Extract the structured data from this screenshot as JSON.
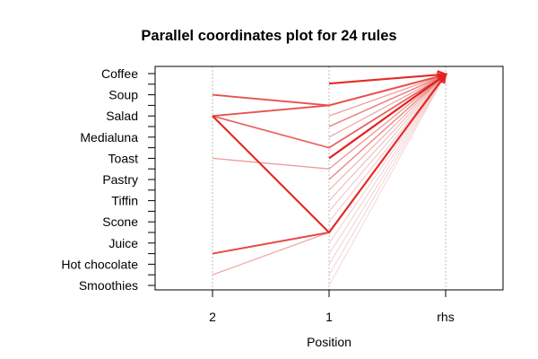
{
  "chart_data": {
    "type": "parallel_coordinates",
    "title": "Parallel coordinates plot for 24 rules",
    "xlabel": "Position",
    "axes": [
      "2",
      "1",
      "rhs"
    ],
    "items": [
      "Coffee",
      "Soup",
      "Salad",
      "Medialuna",
      "Toast",
      "Pastry",
      "Tiffin",
      "Scone",
      "Juice",
      "Hot chocolate",
      "Smoothies"
    ],
    "grid": true,
    "colors": {
      "strong": "#e4211c",
      "faint": "#f0d6d6"
    },
    "rules": [
      {
        "path": [
          null,
          0.47,
          0.03
        ],
        "intensity": 0.95
      },
      {
        "path": [
          1.0,
          1.5,
          0.05
        ],
        "intensity": 0.75
      },
      {
        "path": [
          2.0,
          1.5,
          0.05
        ],
        "intensity": 0.75
      },
      {
        "path": [
          2.0,
          3.5,
          0.05
        ],
        "intensity": 0.65
      },
      {
        "path": [
          2.0,
          7.5,
          0.05
        ],
        "intensity": 0.95
      },
      {
        "path": [
          4.0,
          4.5,
          0.05
        ],
        "intensity": 0.35
      },
      {
        "path": [
          8.5,
          7.5,
          0.05
        ],
        "intensity": 0.8
      },
      {
        "path": [
          9.5,
          7.5,
          0.05
        ],
        "intensity": 0.3
      },
      {
        "path": [
          null,
          4.0,
          0.05
        ],
        "intensity": 1.0
      },
      {
        "path": [
          null,
          3.5,
          0.05
        ],
        "intensity": 0.55
      },
      {
        "path": [
          null,
          2.5,
          0.05
        ],
        "intensity": 0.5
      },
      {
        "path": [
          null,
          5.0,
          0.05
        ],
        "intensity": 0.45
      },
      {
        "path": [
          null,
          2.0,
          0.05
        ],
        "intensity": 0.35
      },
      {
        "path": [
          null,
          3.0,
          0.05
        ],
        "intensity": 0.3
      },
      {
        "path": [
          null,
          4.5,
          0.05
        ],
        "intensity": 0.3
      },
      {
        "path": [
          null,
          5.5,
          0.05
        ],
        "intensity": 0.25
      },
      {
        "path": [
          null,
          6.0,
          0.05
        ],
        "intensity": 0.2
      },
      {
        "path": [
          null,
          6.5,
          0.05
        ],
        "intensity": 0.15
      },
      {
        "path": [
          null,
          7.0,
          0.05
        ],
        "intensity": 0.12
      },
      {
        "path": [
          null,
          8.0,
          0.05
        ],
        "intensity": 0.1
      },
      {
        "path": [
          null,
          8.5,
          0.05
        ],
        "intensity": 0.1
      },
      {
        "path": [
          null,
          9.0,
          0.05
        ],
        "intensity": 0.08
      },
      {
        "path": [
          null,
          9.5,
          0.05
        ],
        "intensity": 0.08
      },
      {
        "path": [
          null,
          10.0,
          0.05
        ],
        "intensity": 0.06
      }
    ]
  }
}
